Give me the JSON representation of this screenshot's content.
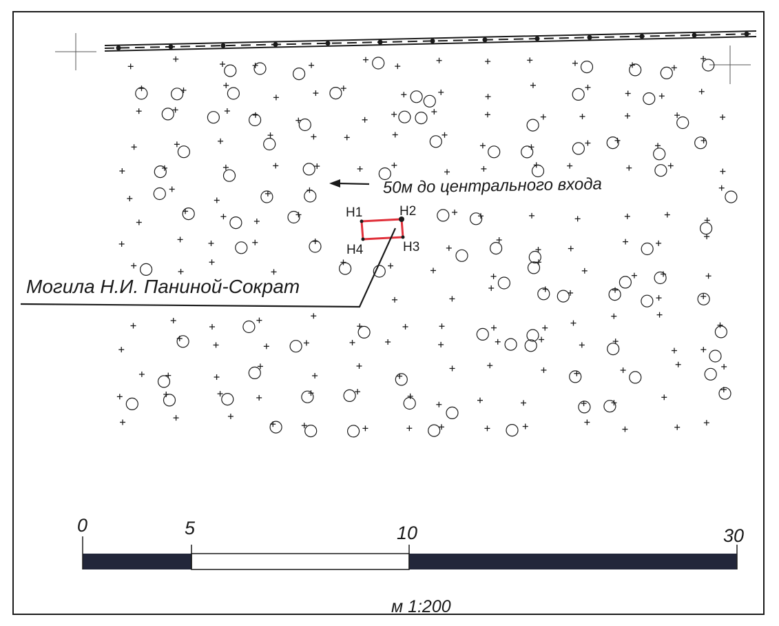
{
  "map": {
    "direction_note": "50м до центрального входа",
    "grave_label": "Могила Н.И. Паниной-Сократ",
    "points": [
      "Н1",
      "Н2",
      "Н3",
      "Н4"
    ],
    "scale": {
      "ticks": [
        "0",
        "5",
        "10",
        "30"
      ],
      "caption": "м 1:200"
    },
    "colors": {
      "ink": "#1a1a1a",
      "plot_outline": "#e0303a",
      "scale_dark": "#22263a"
    },
    "icons": [
      "arrow-left-icon",
      "cross-marker-icon",
      "tree-circle-icon"
    ]
  }
}
